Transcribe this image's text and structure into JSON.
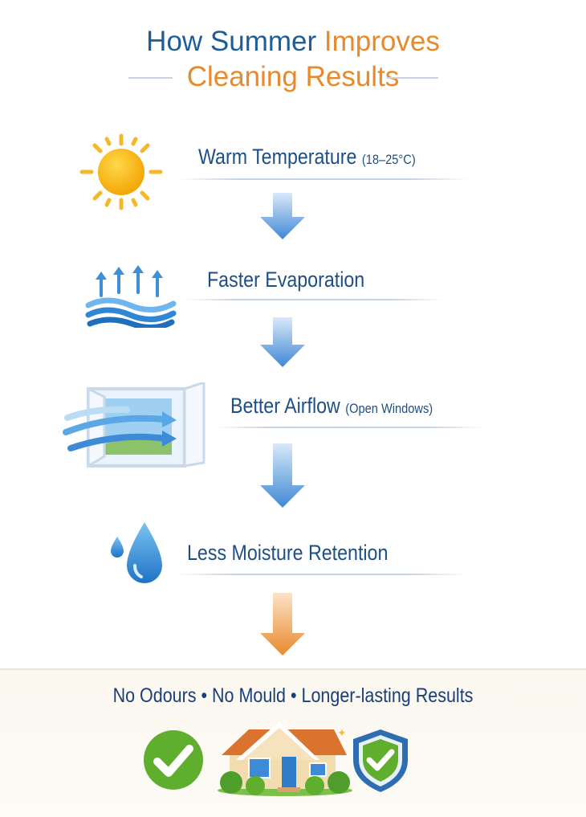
{
  "title": {
    "line1_blue": "How Summer",
    "line1_orange": "Improves",
    "line2": "Cleaning Results"
  },
  "steps": [
    {
      "label": "Warm Temperature",
      "note": "(18–25°C)",
      "icon": "sun-icon"
    },
    {
      "label": "Faster Evaporation",
      "note": "",
      "icon": "evaporation-waves-icon"
    },
    {
      "label": "Better Airflow",
      "note": "(Open Windows)",
      "icon": "open-window-icon"
    },
    {
      "label": "Less Moisture Retention",
      "note": "",
      "icon": "water-drops-icon"
    }
  ],
  "result": {
    "text": "No Odours • No Mould • Longer-lasting Results",
    "icons": [
      "check-circle-icon",
      "house-icon",
      "shield-check-icon"
    ]
  },
  "colors": {
    "title_blue": "#1f5d99",
    "title_orange": "#e8892b",
    "arrow_blue": "#4a90d9",
    "arrow_orange": "#e8892b",
    "check_green": "#5fae2e"
  }
}
